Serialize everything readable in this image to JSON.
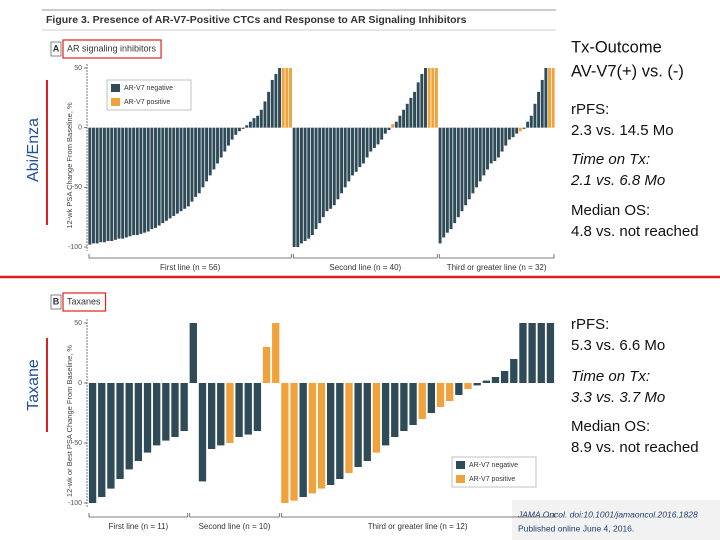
{
  "figure_title": "Figure 3. Presence of AR-V7-Positive CTCs and Response to AR Signaling Inhibitors",
  "side_labels": [
    "Abi/Enza",
    "Taxane"
  ],
  "summary": {
    "title": [
      "Tx-Outcome",
      "AV-V7(+) vs. (-)"
    ],
    "panels": [
      [
        {
          "label": "rPFS:",
          "value": "2.3 vs. 14.5 Mo"
        },
        {
          "label": "Time on Tx:",
          "value": "2.1 vs. 6.8 Mo"
        },
        {
          "label": "Median OS:",
          "value": "4.8 vs. not reached"
        }
      ],
      [
        {
          "label": "rPFS:",
          "value": "5.3 vs. 6.6 Mo"
        },
        {
          "label": "Time on Tx:",
          "value": "3.3 vs. 3.7 Mo"
        },
        {
          "label": "Median OS:",
          "value": "8.9 vs. not reached"
        }
      ]
    ]
  },
  "citation": [
    "JAMA Oncol. doi:10.1001/jamaoncol.2016.1828",
    "Published online June 4, 2016."
  ],
  "chart_data": [
    {
      "type": "bar",
      "panel": "A",
      "subtitle": "AR signaling inhibitors",
      "y_label": "12-wk PSA Change From Baseline, %",
      "groups": [
        "First line (n = 56)",
        "Second line (n = 40)",
        "Third or greater line (n = 32)"
      ],
      "ylim": [
        -100,
        50
      ],
      "yticks": [
        50,
        0,
        -50,
        -100
      ],
      "legend": "top-left",
      "series": [
        {
          "name": "AR-V7 negative",
          "color": "#2f4b58",
          "values": [
            -98,
            -97,
            -97,
            -96,
            -96,
            -95,
            -95,
            -94,
            -93,
            -93,
            -92,
            -91,
            -90,
            -90,
            -89,
            -88,
            -87,
            -85,
            -84,
            -82,
            -80,
            -78,
            -76,
            -74,
            -72,
            -70,
            -68,
            -66,
            -62,
            -58,
            -55,
            -50,
            -45,
            -40,
            -35,
            -30,
            -25,
            -20,
            -15,
            -10,
            -6,
            -3,
            -1,
            2,
            5,
            8,
            10,
            15,
            22,
            30,
            40,
            45,
            50,
            null,
            null,
            null,
            -100,
            -100,
            -97,
            -95,
            -93,
            -90,
            -85,
            -80,
            -75,
            -70,
            -68,
            -65,
            -60,
            -55,
            -50,
            -45,
            -40,
            -37,
            -33,
            -30,
            -25,
            -20,
            -17,
            -14,
            -10,
            -5,
            -2,
            null,
            5,
            10,
            15,
            20,
            25,
            30,
            38,
            45,
            50,
            null,
            null,
            null,
            -97,
            -92,
            -88,
            -85,
            -80,
            -75,
            -70,
            -65,
            -60,
            -55,
            -50,
            -45,
            -40,
            -35,
            -30,
            -28,
            -25,
            -20,
            -15,
            -10,
            -8,
            -5,
            null,
            -1,
            5,
            10,
            20,
            30,
            40,
            50,
            null,
            null
          ]
        },
        {
          "name": "AR-V7 positive",
          "color": "#f0a33c",
          "values": [
            null,
            null,
            null,
            null,
            null,
            null,
            null,
            null,
            null,
            null,
            null,
            null,
            null,
            null,
            null,
            null,
            null,
            null,
            null,
            null,
            null,
            null,
            null,
            null,
            null,
            null,
            null,
            null,
            null,
            null,
            null,
            null,
            null,
            null,
            null,
            null,
            null,
            null,
            null,
            null,
            null,
            null,
            null,
            null,
            null,
            null,
            null,
            null,
            null,
            null,
            null,
            null,
            null,
            50,
            50,
            50,
            null,
            null,
            null,
            null,
            null,
            null,
            null,
            null,
            null,
            null,
            null,
            null,
            null,
            null,
            null,
            null,
            null,
            null,
            null,
            null,
            null,
            null,
            null,
            null,
            null,
            null,
            null,
            3,
            null,
            null,
            null,
            null,
            null,
            null,
            null,
            null,
            null,
            50,
            50,
            50,
            null,
            null,
            null,
            null,
            null,
            null,
            null,
            null,
            null,
            null,
            null,
            null,
            null,
            null,
            null,
            null,
            null,
            null,
            null,
            null,
            null,
            null,
            -3,
            null,
            null,
            null,
            null,
            null,
            null,
            null,
            50,
            50
          ]
        }
      ]
    },
    {
      "type": "bar",
      "panel": "B",
      "subtitle": "Taxanes",
      "y_label": "12-wk or Best PSA Change From Baseline, %",
      "groups": [
        "First line (n = 11)",
        "Second line (n = 10)",
        "Third or greater line (n = 12)"
      ],
      "ylim": [
        -100,
        50
      ],
      "yticks": [
        50,
        0,
        -50,
        -100
      ],
      "legend": "bottom-right",
      "series": [
        {
          "name": "AR-V7 negative",
          "color": "#2f4b58",
          "values": [
            -100,
            -95,
            -88,
            -80,
            -72,
            -65,
            -58,
            -52,
            -48,
            -45,
            -40,
            50,
            -82,
            -55,
            -52,
            null,
            -45,
            -43,
            -40,
            null,
            null,
            null,
            null,
            -95,
            null,
            null,
            -85,
            -80,
            null,
            -70,
            -65,
            null,
            -52,
            -45,
            -40,
            -35,
            null,
            -25,
            null,
            null,
            -10,
            null,
            -2,
            2,
            5,
            10,
            20,
            50,
            50,
            50,
            50
          ]
        },
        {
          "name": "AR-V7 positive",
          "color": "#f0a33c",
          "values": [
            null,
            null,
            null,
            null,
            null,
            null,
            null,
            null,
            null,
            null,
            null,
            null,
            null,
            null,
            null,
            -50,
            null,
            null,
            null,
            30,
            50,
            -100,
            -98,
            null,
            -92,
            -88,
            null,
            null,
            -75,
            null,
            null,
            -58,
            null,
            null,
            null,
            null,
            -30,
            null,
            -20,
            -15,
            null,
            -5,
            null,
            null,
            null,
            null,
            null,
            null,
            null,
            null,
            null
          ]
        }
      ]
    }
  ]
}
